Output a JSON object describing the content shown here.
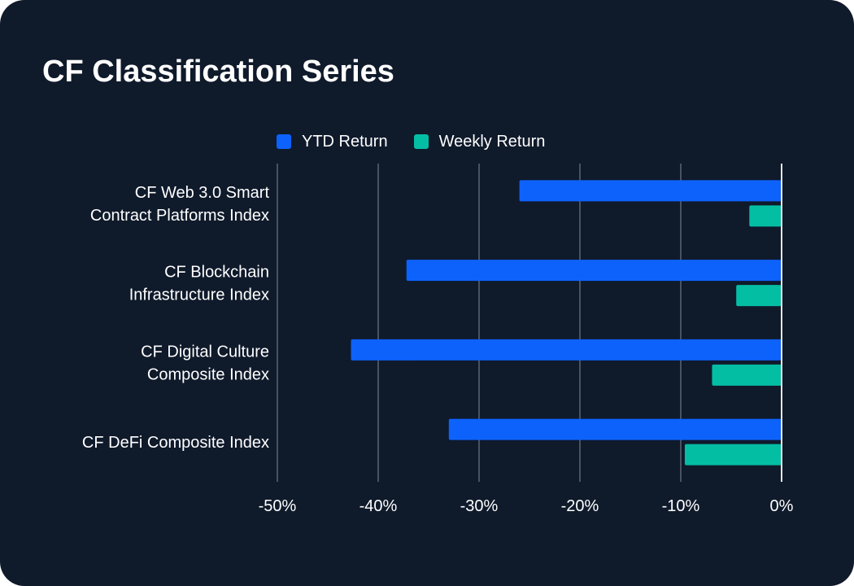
{
  "card": {
    "title": "CF Classification Series"
  },
  "colors": {
    "background": "#0f1a2b",
    "ytd": "#0d62fb",
    "weekly": "#04bea4",
    "grid": "#4a5260",
    "zero_line": "#e6e6e6",
    "text": "#ffffff"
  },
  "chart_data": {
    "type": "bar",
    "orientation": "horizontal",
    "title": "CF Classification Series",
    "categories": [
      [
        "CF Web 3.0 Smart",
        "Contract Platforms Index"
      ],
      [
        "CF Blockchain",
        "Infrastructure Index"
      ],
      [
        "CF Digital Culture",
        "Composite Index"
      ],
      [
        "CF DeFi Composite Index"
      ]
    ],
    "series": [
      {
        "name": "YTD Return",
        "color": "#0d62fb",
        "values": [
          -26.0,
          -37.2,
          -42.7,
          -33.0
        ]
      },
      {
        "name": "Weekly Return",
        "color": "#04bea4",
        "values": [
          -3.2,
          -4.5,
          -6.9,
          -9.6
        ]
      }
    ],
    "xlim": [
      -50,
      0
    ],
    "xticks": [
      -50,
      -40,
      -30,
      -20,
      -10,
      0
    ],
    "xtick_labels": [
      "-50%",
      "-40%",
      "-30%",
      "-20%",
      "-10%",
      "0%"
    ],
    "xlabel": "",
    "ylabel": "",
    "grid": true,
    "legend_position": "top"
  }
}
